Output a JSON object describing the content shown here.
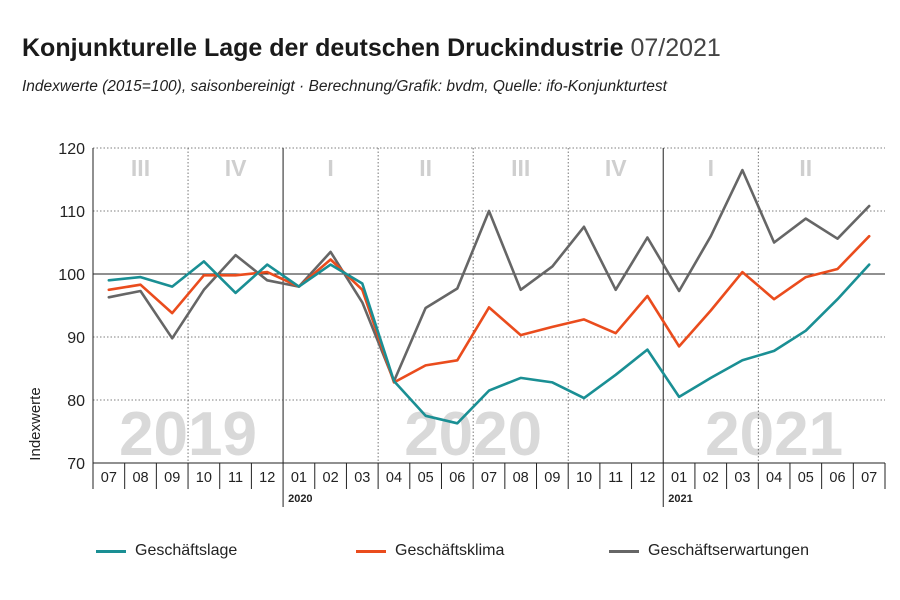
{
  "header": {
    "title": "Konjunkturelle Lage der deutschen Druckindustrie",
    "title_date": "07/2021",
    "subtitle": "Indexwerte (2015=100), saisonbereinigt · Berechnung/Grafik: bvdm, Quelle: ifo-Konjunkturtest"
  },
  "chart_data": {
    "type": "line",
    "ylabel": "Indexwerte",
    "ylim": [
      70,
      120
    ],
    "yticks": [
      70,
      80,
      90,
      100,
      110,
      120
    ],
    "grid": true,
    "legend_position": "bottom",
    "categories": [
      "07",
      "08",
      "09",
      "10",
      "11",
      "12",
      "01",
      "02",
      "03",
      "04",
      "05",
      "06",
      "07",
      "08",
      "09",
      "10",
      "11",
      "12",
      "01",
      "02",
      "03",
      "04",
      "05",
      "06",
      "07"
    ],
    "year_markers": [
      {
        "label": "2020",
        "index": 6
      },
      {
        "label": "2021",
        "index": 18
      }
    ],
    "watermark_years": [
      {
        "label": "2019",
        "start": 0,
        "end": 5
      },
      {
        "label": "2020",
        "start": 6,
        "end": 17
      },
      {
        "label": "2021",
        "start": 18,
        "end": 24
      }
    ],
    "quarters": [
      {
        "label": "III",
        "start": 0,
        "end": 2
      },
      {
        "label": "IV",
        "start": 3,
        "end": 5
      },
      {
        "label": "I",
        "start": 6,
        "end": 8
      },
      {
        "label": "II",
        "start": 9,
        "end": 11
      },
      {
        "label": "III",
        "start": 12,
        "end": 14
      },
      {
        "label": "IV",
        "start": 15,
        "end": 17
      },
      {
        "label": "I",
        "start": 18,
        "end": 20
      },
      {
        "label": "II",
        "start": 21,
        "end": 23
      }
    ],
    "reference_line": 100,
    "series": [
      {
        "name": "Geschäftslage",
        "color": "#1a8f94",
        "values": [
          99,
          99.5,
          98,
          102,
          97,
          101.5,
          98,
          101.5,
          98.5,
          83,
          77.5,
          76.3,
          81.5,
          83.5,
          82.8,
          80.3,
          84,
          88,
          80.5,
          83.5,
          86.3,
          87.8,
          91,
          96,
          101.5
        ]
      },
      {
        "name": "Geschäftsklima",
        "color": "#ea4c1d",
        "values": [
          97.5,
          98.3,
          93.8,
          99.8,
          99.8,
          100.3,
          98,
          102.3,
          97.5,
          82.8,
          85.5,
          86.3,
          94.7,
          90.3,
          91.6,
          92.8,
          90.6,
          96.5,
          88.5,
          94.2,
          100.3,
          96,
          99.5,
          100.8,
          106
        ]
      },
      {
        "name": "Geschäftserwartungen",
        "color": "#666666",
        "values": [
          96.3,
          97.3,
          89.8,
          97.5,
          103,
          99,
          98,
          103.5,
          95.5,
          83,
          94.6,
          97.7,
          110,
          97.5,
          101.2,
          107.5,
          97.5,
          105.8,
          97.3,
          106,
          116.5,
          105,
          108.8,
          105.6,
          110.8
        ]
      }
    ]
  }
}
